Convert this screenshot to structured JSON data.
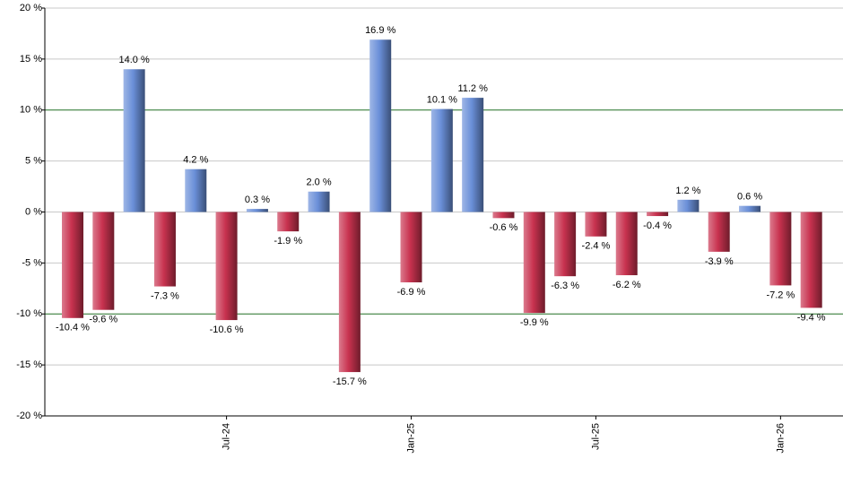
{
  "chart_data": {
    "type": "bar",
    "categories": [
      null,
      null,
      null,
      null,
      null,
      "Jul-24",
      null,
      null,
      null,
      null,
      null,
      "Jan-25",
      null,
      null,
      null,
      null,
      null,
      "Jul-25",
      null,
      null,
      null,
      null,
      null,
      "Jan-26",
      null
    ],
    "values": [
      -10.4,
      -9.6,
      14.0,
      -7.3,
      4.2,
      -10.6,
      0.3,
      -1.9,
      2.0,
      -15.7,
      16.9,
      -6.9,
      10.1,
      11.2,
      -0.6,
      -9.9,
      -6.3,
      -2.4,
      -6.2,
      -0.4,
      1.2,
      -3.9,
      0.6,
      -7.2,
      -9.4
    ],
    "value_labels": [
      "-10.4 %",
      "-9.6 %",
      "14.0 %",
      "-7.3 %",
      "4.2 %",
      "-10.6 %",
      "0.3 %",
      "-1.9 %",
      "2.0 %",
      "-15.7 %",
      "16.9 %",
      "-6.9 %",
      "10.1 %",
      "11.2 %",
      "-0.6 %",
      "-9.9 %",
      "-6.3 %",
      "-2.4 %",
      "-6.2 %",
      "-0.4 %",
      "1.2 %",
      "-3.9 %",
      "0.6 %",
      "-7.2 %",
      "-9.4 %"
    ],
    "positive_color": "#6a8fd8",
    "negative_color": "#c8324f",
    "ylim": [
      -20,
      20
    ],
    "yticks": [
      {
        "value": -20,
        "label": "-20 %"
      },
      {
        "value": -15,
        "label": "-15 %"
      },
      {
        "value": -10,
        "label": "-10 %"
      },
      {
        "value": -5,
        "label": "-5 %"
      },
      {
        "value": 0,
        "label": "0 %"
      },
      {
        "value": 5,
        "label": "5 %"
      },
      {
        "value": 10,
        "label": "10 %"
      },
      {
        "value": 15,
        "label": "15 %"
      },
      {
        "value": 20,
        "label": "20 %"
      }
    ],
    "grid": true,
    "reference_lines": [
      10,
      -10
    ],
    "reference_color": "#2e7d32"
  }
}
